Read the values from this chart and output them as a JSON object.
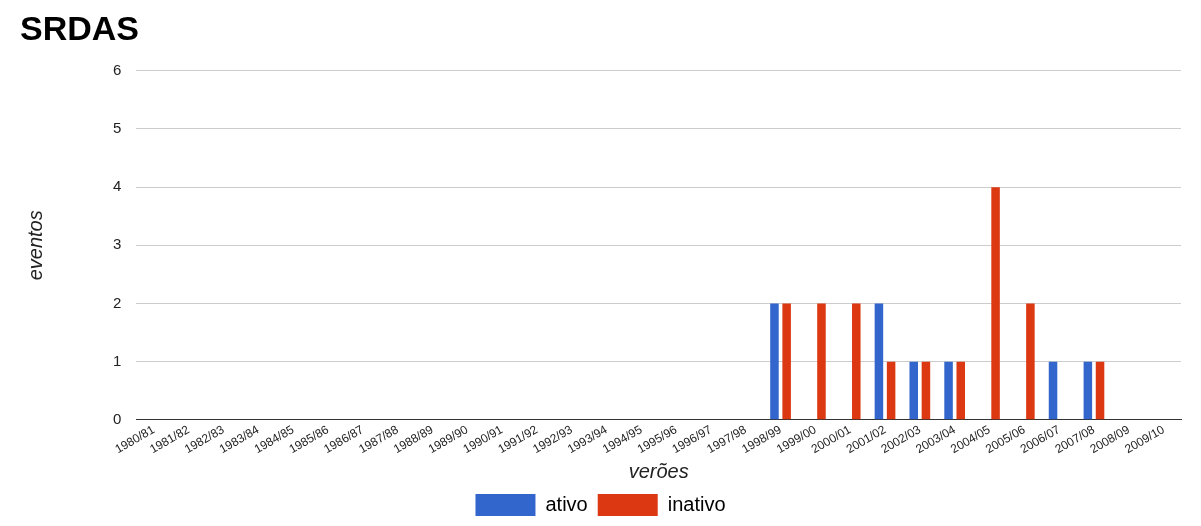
{
  "chart_data": {
    "type": "bar",
    "title": "SRDAS",
    "xlabel": "verões",
    "ylabel": "eventos",
    "categories": [
      "1980/81",
      "1981/82",
      "1982/83",
      "1983/84",
      "1984/85",
      "1985/86",
      "1986/87",
      "1987/88",
      "1988/89",
      "1989/90",
      "1990/91",
      "1991/92",
      "1992/93",
      "1993/94",
      "1994/95",
      "1995/96",
      "1996/97",
      "1997/98",
      "1998/99",
      "1999/00",
      "2000/01",
      "2001/02",
      "2002/03",
      "2003/04",
      "2004/05",
      "2005/06",
      "2006/07",
      "2007/08",
      "2008/09",
      "2009/10"
    ],
    "series": [
      {
        "name": "ativo",
        "color": "#3366cc",
        "values": [
          0,
          0,
          0,
          0,
          0,
          0,
          0,
          0,
          0,
          0,
          0,
          0,
          0,
          0,
          0,
          0,
          0,
          0,
          2,
          0,
          0,
          2,
          1,
          1,
          0,
          0,
          1,
          1,
          0,
          0
        ]
      },
      {
        "name": "inativo",
        "color": "#dc3912",
        "values": [
          0,
          0,
          0,
          0,
          0,
          0,
          0,
          0,
          0,
          0,
          0,
          0,
          0,
          0,
          0,
          0,
          0,
          0,
          2,
          2,
          2,
          1,
          1,
          1,
          4,
          2,
          0,
          1,
          0,
          0
        ]
      }
    ],
    "ylim": [
      0,
      6
    ],
    "yticks": [
      0,
      1,
      2,
      3,
      4,
      5,
      6
    ],
    "grid": "y",
    "legend": "bottom"
  }
}
